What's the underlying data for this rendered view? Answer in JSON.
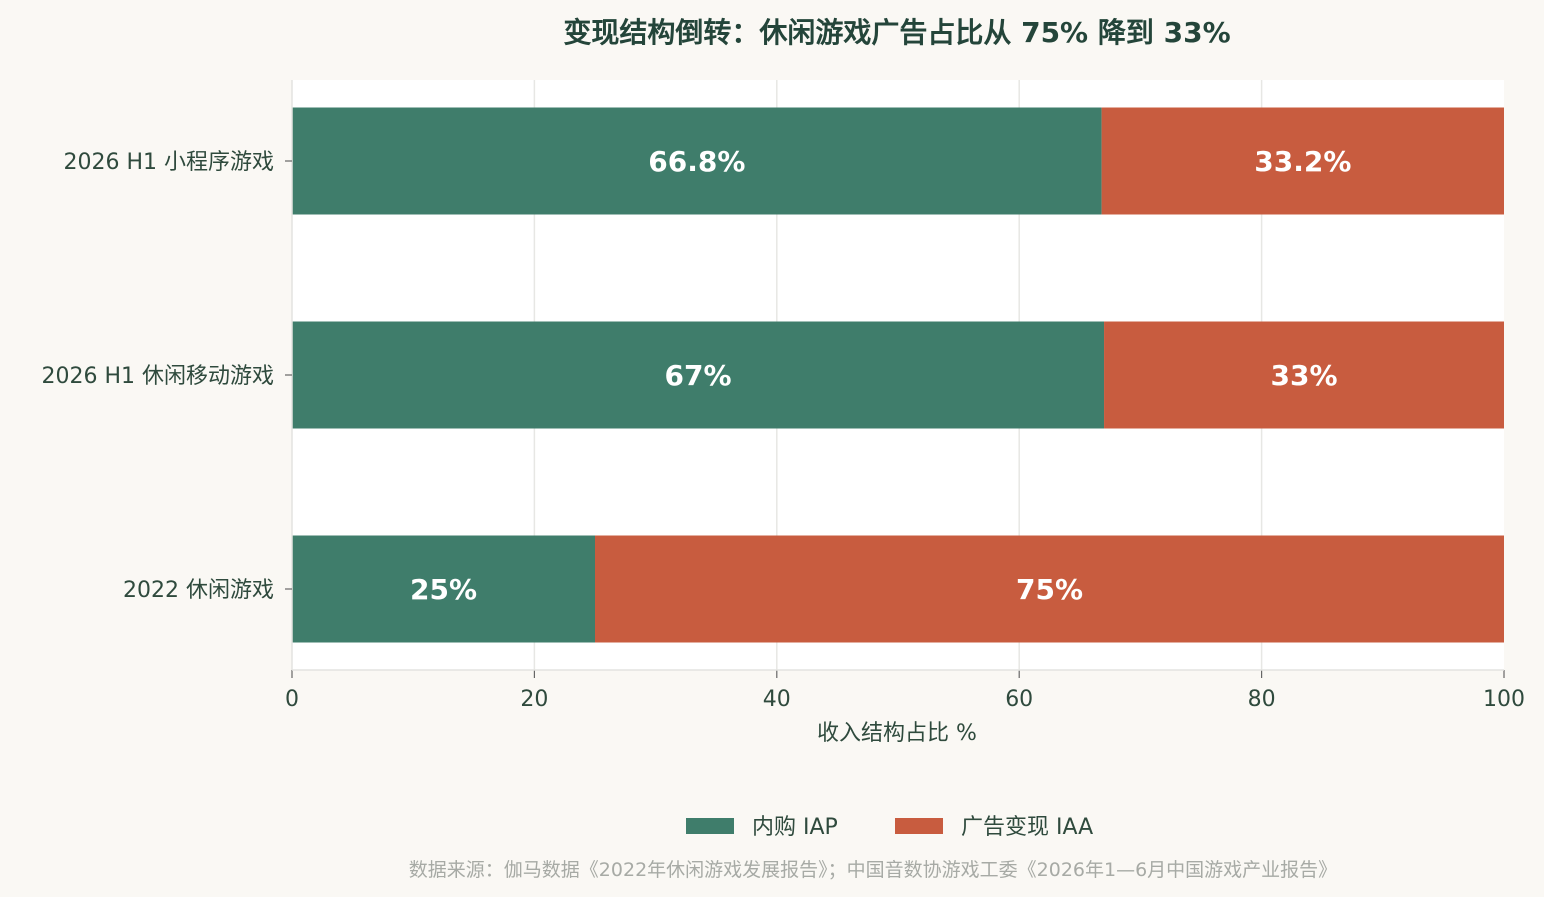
{
  "chart_data": {
    "type": "bar",
    "orientation": "horizontal",
    "stacked": true,
    "title": "变现结构倒转：休闲游戏广告占比从 75% 降到 33%",
    "categories": [
      "2026 H1 小程序游戏",
      "2026 H1 休闲移动游戏",
      "2022 休闲游戏"
    ],
    "series": [
      {
        "name": "内购 IAP",
        "color": "#3f7d6b",
        "values": [
          66.8,
          67,
          25
        ],
        "labels": [
          "66.8%",
          "67%",
          "25%"
        ]
      },
      {
        "name": "广告变现 IAA",
        "color": "#c85c3f",
        "values": [
          33.2,
          33,
          75
        ],
        "labels": [
          "33.2%",
          "33%",
          "75%"
        ]
      }
    ],
    "xlabel": "收入结构占比 %",
    "ylabel": "",
    "xlim": [
      0,
      100
    ],
    "xticks": [
      0,
      20,
      40,
      60,
      80,
      100
    ],
    "grid": "vertical",
    "legend_position": "bottom-center",
    "source": "数据来源：伽马数据《2022年休闲游戏发展报告》；中国音数协游戏工委《2026年1—6月中国游戏产业报告》"
  }
}
